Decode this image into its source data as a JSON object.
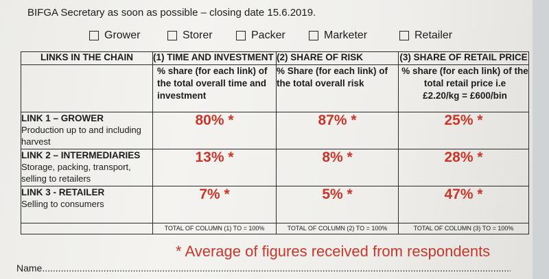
{
  "intro": "BIFGA Secretary as soon as possible – closing date 15.6.2019.",
  "roles": [
    "Grower",
    "Storer",
    "Packer",
    "Marketer",
    "Retailer"
  ],
  "table": {
    "headers": {
      "links": "LINKS IN THE CHAIN",
      "col1": "(1) TIME AND INVESTMENT",
      "col2": "(2) SHARE OF RISK",
      "col3": "(3) SHARE OF RETAIL PRICE"
    },
    "descriptions": {
      "col1": "% share (for each link) of the total overall time and investment",
      "col2": "% Share (for each link) of the total overall risk",
      "col3_line1": "% share (for each link) of the total retail price i.e",
      "col3_line2": "£2.20/kg = £600/bin"
    },
    "rows": [
      {
        "title": "LINK 1 – GROWER",
        "detail": "Production up to and including harvest",
        "time": "80% *",
        "risk": "87% *",
        "price": "25% *"
      },
      {
        "title": "LINK 2 – INTERMEDIARIES",
        "detail": "Storage, packing, transport, selling to retailers",
        "time": "13% *",
        "risk": "8% *",
        "price": "28% *"
      },
      {
        "title": "LINK 3 - RETAILER",
        "detail": "Selling to consumers",
        "time": "7% *",
        "risk": "5% *",
        "price": "47% *"
      }
    ],
    "totals": {
      "col1": "TOTAL OF COLUMN (1) TO = 100%",
      "col2": "TOTAL OF COLUMN (2) TO = 100%",
      "col3": "TOTAL OF COLUMN (3) TO = 100%"
    }
  },
  "note": "* Average of figures received from respondents",
  "name_label": "Name......................................................................................................................................................................................."
}
